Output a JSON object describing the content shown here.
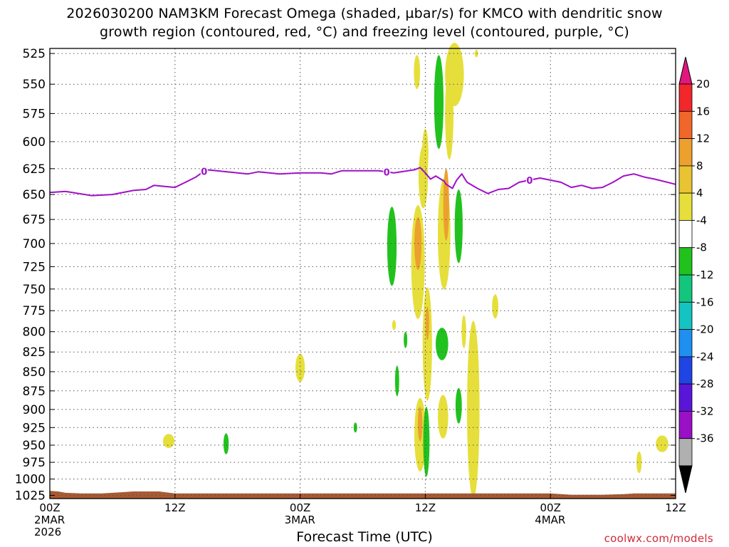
{
  "title": {
    "line1": "2026030200 NAM3KM Forecast Omega (shaded, µbar/s) for KMCO with dendritic snow",
    "line2": "growth region (contoured, red, °C) and freezing level (contoured, purple, °C)"
  },
  "footer": "coolwx.com/models",
  "chart_data": {
    "type": "heatmap",
    "xlabel": "Forecast Time (UTC)",
    "ylabel": "",
    "y_ticks": [
      525,
      550,
      575,
      600,
      625,
      650,
      675,
      700,
      725,
      750,
      775,
      800,
      825,
      850,
      875,
      900,
      925,
      950,
      975,
      1000,
      1025
    ],
    "ylim": [
      1030,
      521
    ],
    "y_scale": "log",
    "x_ticks": [
      {
        "t": 0,
        "label": "00Z",
        "sub": "2MAR",
        "sub2": "2026"
      },
      {
        "t": 12,
        "label": "12Z",
        "sub": "",
        "sub2": ""
      },
      {
        "t": 24,
        "label": "00Z",
        "sub": "3MAR",
        "sub2": ""
      },
      {
        "t": 36,
        "label": "12Z",
        "sub": "",
        "sub2": ""
      },
      {
        "t": 48,
        "label": "00Z",
        "sub": "4MAR",
        "sub2": ""
      },
      {
        "t": 60,
        "label": "12Z",
        "sub": "",
        "sub2": ""
      }
    ],
    "xlim": [
      0,
      60
    ],
    "grid": true,
    "colorbar": {
      "labels": [
        "20",
        "16",
        "12",
        "8",
        "4",
        "-4",
        "-8",
        "-12",
        "-16",
        "-20",
        "-24",
        "-28",
        "-32",
        "-36"
      ],
      "colors": [
        "#e2177e",
        "#f2272b",
        "#f0662b",
        "#eca02e",
        "#e8c432",
        "#e6df3b",
        "#ffffff",
        "#21c21e",
        "#14c57d",
        "#14c4c2",
        "#1f8ff0",
        "#2045e4",
        "#5a16d8",
        "#9a10c6",
        "#b0b0b0",
        "#000000"
      ]
    },
    "freezing_level": {
      "color": "#a010c8",
      "label": "0",
      "label_times": [
        14.8,
        32.3,
        46.0
      ],
      "points": [
        [
          0,
          648
        ],
        [
          1.5,
          647
        ],
        [
          4,
          651
        ],
        [
          6,
          650
        ],
        [
          8,
          646
        ],
        [
          9.2,
          645
        ],
        [
          10,
          641
        ],
        [
          11,
          642
        ],
        [
          12,
          643
        ],
        [
          13,
          638
        ],
        [
          14,
          633
        ],
        [
          15,
          626
        ],
        [
          17,
          628
        ],
        [
          19,
          630
        ],
        [
          20,
          628
        ],
        [
          22,
          630
        ],
        [
          24,
          629
        ],
        [
          26,
          629
        ],
        [
          27,
          630
        ],
        [
          28,
          627
        ],
        [
          30,
          627
        ],
        [
          31.5,
          627
        ],
        [
          33,
          629
        ],
        [
          35,
          626
        ],
        [
          35.5,
          624
        ],
        [
          36,
          629
        ],
        [
          36.5,
          635
        ],
        [
          37,
          632
        ],
        [
          37.8,
          637
        ],
        [
          38,
          640
        ],
        [
          38.6,
          644
        ],
        [
          39,
          636
        ],
        [
          39.5,
          630
        ],
        [
          40,
          638
        ],
        [
          41,
          644
        ],
        [
          42,
          649
        ],
        [
          43,
          645
        ],
        [
          44,
          644
        ],
        [
          45,
          638
        ],
        [
          46,
          636
        ],
        [
          47,
          634
        ],
        [
          48,
          636
        ],
        [
          49,
          638
        ],
        [
          50,
          643
        ],
        [
          51,
          641
        ],
        [
          52,
          644
        ],
        [
          53,
          643
        ],
        [
          54,
          638
        ],
        [
          55,
          632
        ],
        [
          56,
          630
        ],
        [
          57,
          633
        ],
        [
          58,
          635
        ],
        [
          60,
          640
        ]
      ]
    },
    "terrain": {
      "color": "#a85a33",
      "points": [
        [
          0,
          1018
        ],
        [
          0.8,
          1019
        ],
        [
          1.5,
          1021
        ],
        [
          3,
          1022
        ],
        [
          5,
          1022
        ],
        [
          6,
          1021
        ],
        [
          7,
          1020
        ],
        [
          8,
          1019
        ],
        [
          9.5,
          1019
        ],
        [
          10.5,
          1019
        ],
        [
          11,
          1020
        ],
        [
          12,
          1022
        ],
        [
          18,
          1022
        ],
        [
          24,
          1022
        ],
        [
          36,
          1022
        ],
        [
          48,
          1022
        ],
        [
          49,
          1023
        ],
        [
          50,
          1024
        ],
        [
          53,
          1024
        ],
        [
          55,
          1023
        ],
        [
          56,
          1022
        ],
        [
          60,
          1022
        ]
      ]
    },
    "omega_regions": [
      {
        "value": 4,
        "t": 11.4,
        "p": 944,
        "dt": 0.55,
        "dp": 10
      },
      {
        "value": -4,
        "t": 16.9,
        "p": 948,
        "dt": 0.25,
        "dp": 15
      },
      {
        "value": 4,
        "t": 24.0,
        "p": 845,
        "dt": 0.45,
        "dp": 18
      },
      {
        "value": -4,
        "t": 29.3,
        "p": 925,
        "dt": 0.16,
        "dp": 7
      },
      {
        "value": -4,
        "t": 32.8,
        "p": 703,
        "dt": 0.45,
        "dp": 42
      },
      {
        "value": 4,
        "t": 33.0,
        "p": 792,
        "dt": 0.18,
        "dp": 6
      },
      {
        "value": -4,
        "t": 33.3,
        "p": 862,
        "dt": 0.2,
        "dp": 20
      },
      {
        "value": -4,
        "t": 34.1,
        "p": 810,
        "dt": 0.16,
        "dp": 10
      },
      {
        "value": 4,
        "t": 35.3,
        "p": 720,
        "dt": 0.65,
        "dp": 62
      },
      {
        "value": 8,
        "t": 35.3,
        "p": 700,
        "dt": 0.35,
        "dp": 28
      },
      {
        "value": 4,
        "t": 35.8,
        "p": 633,
        "dt": 0.45,
        "dp": 30
      },
      {
        "value": 4,
        "t": 35.2,
        "p": 540,
        "dt": 0.3,
        "dp": 14
      },
      {
        "value": 4,
        "t": 35.5,
        "p": 935,
        "dt": 0.55,
        "dp": 52
      },
      {
        "value": 8,
        "t": 35.5,
        "p": 920,
        "dt": 0.22,
        "dp": 24
      },
      {
        "value": 4,
        "t": 36.2,
        "p": 815,
        "dt": 0.45,
        "dp": 70
      },
      {
        "value": 8,
        "t": 36.2,
        "p": 790,
        "dt": 0.15,
        "dp": 20
      },
      {
        "value": 4,
        "t": 36.0,
        "p": 610,
        "dt": 0.3,
        "dp": 22
      },
      {
        "value": -4,
        "t": 36.1,
        "p": 945,
        "dt": 0.3,
        "dp": 50
      },
      {
        "value": -4,
        "t": 37.3,
        "p": 565,
        "dt": 0.45,
        "dp": 40
      },
      {
        "value": 4,
        "t": 37.8,
        "p": 690,
        "dt": 0.6,
        "dp": 58
      },
      {
        "value": 8,
        "t": 38.0,
        "p": 660,
        "dt": 0.28,
        "dp": 36
      },
      {
        "value": 4,
        "t": 38.3,
        "p": 575,
        "dt": 0.4,
        "dp": 40
      },
      {
        "value": 4,
        "t": 37.7,
        "p": 910,
        "dt": 0.5,
        "dp": 30
      },
      {
        "value": -4,
        "t": 37.6,
        "p": 815,
        "dt": 0.6,
        "dp": 20
      },
      {
        "value": 4,
        "t": 38.8,
        "p": 542,
        "dt": 0.9,
        "dp": 26
      },
      {
        "value": -4,
        "t": 39.2,
        "p": 682,
        "dt": 0.38,
        "dp": 38
      },
      {
        "value": -4,
        "t": 39.2,
        "p": 895,
        "dt": 0.3,
        "dp": 24
      },
      {
        "value": 4,
        "t": 39.7,
        "p": 800,
        "dt": 0.22,
        "dp": 20
      },
      {
        "value": 4,
        "t": 40.6,
        "p": 900,
        "dt": 0.6,
        "dp": 120
      },
      {
        "value": 4,
        "t": 40.9,
        "p": 525,
        "dt": 0.15,
        "dp": 3
      },
      {
        "value": 4,
        "t": 42.7,
        "p": 770,
        "dt": 0.3,
        "dp": 14
      },
      {
        "value": 4,
        "t": 56.5,
        "p": 975,
        "dt": 0.25,
        "dp": 16
      },
      {
        "value": 4,
        "t": 58.7,
        "p": 948,
        "dt": 0.6,
        "dp": 12
      }
    ]
  }
}
